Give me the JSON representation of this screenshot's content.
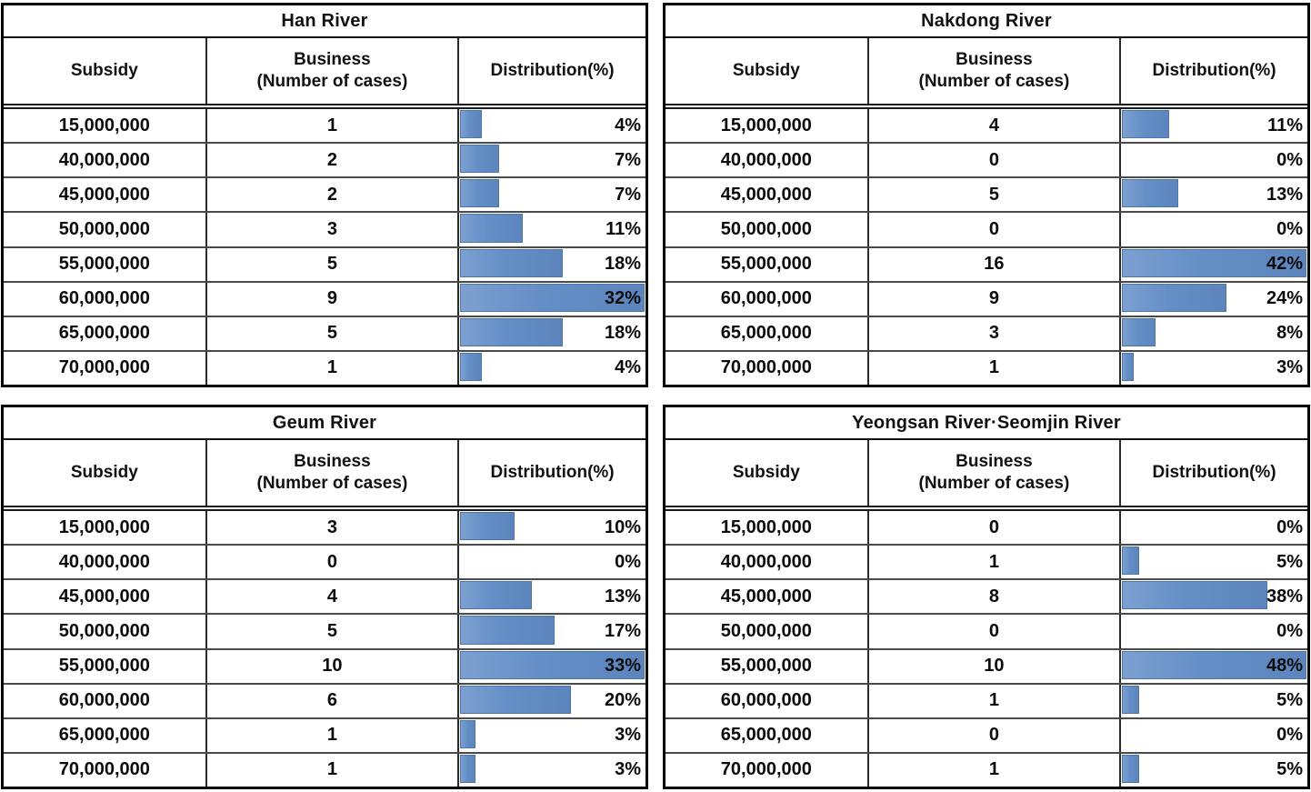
{
  "columns": {
    "subsidy": "Subsidy",
    "business_line1": "Business",
    "business_line2": "(Number of cases)",
    "distribution": "Distribution(%)"
  },
  "bar_color": "#638ec6",
  "chart_data": [
    {
      "type": "table",
      "title": "Han River",
      "columns": [
        "Subsidy",
        "Business (Number of cases)",
        "Distribution(%)"
      ],
      "subsidy": [
        "15,000,000",
        "40,000,000",
        "45,000,000",
        "50,000,000",
        "55,000,000",
        "60,000,000",
        "65,000,000",
        "70,000,000"
      ],
      "business_cases": [
        1,
        2,
        2,
        3,
        5,
        9,
        5,
        1
      ],
      "distribution_pct": [
        4,
        7,
        7,
        11,
        18,
        32,
        18,
        4
      ],
      "bar_scale": "bar width proportional to max percent in table"
    },
    {
      "type": "table",
      "title": "Nakdong River",
      "columns": [
        "Subsidy",
        "Business (Number of cases)",
        "Distribution(%)"
      ],
      "subsidy": [
        "15,000,000",
        "40,000,000",
        "45,000,000",
        "50,000,000",
        "55,000,000",
        "60,000,000",
        "65,000,000",
        "70,000,000"
      ],
      "business_cases": [
        4,
        0,
        5,
        0,
        16,
        9,
        3,
        1
      ],
      "distribution_pct": [
        11,
        0,
        13,
        0,
        42,
        24,
        8,
        3
      ],
      "bar_scale": "bar width proportional to max percent in table"
    },
    {
      "type": "table",
      "title": "Geum River",
      "columns": [
        "Subsidy",
        "Business (Number of cases)",
        "Distribution(%)"
      ],
      "subsidy": [
        "15,000,000",
        "40,000,000",
        "45,000,000",
        "50,000,000",
        "55,000,000",
        "60,000,000",
        "65,000,000",
        "70,000,000"
      ],
      "business_cases": [
        3,
        0,
        4,
        5,
        10,
        6,
        1,
        1
      ],
      "distribution_pct": [
        10,
        0,
        13,
        17,
        33,
        20,
        3,
        3
      ],
      "bar_scale": "bar width proportional to max percent in table"
    },
    {
      "type": "table",
      "title": "Yeongsan River·Seomjin River",
      "columns": [
        "Subsidy",
        "Business (Number of cases)",
        "Distribution(%)"
      ],
      "subsidy": [
        "15,000,000",
        "40,000,000",
        "45,000,000",
        "50,000,000",
        "55,000,000",
        "60,000,000",
        "65,000,000",
        "70,000,000"
      ],
      "business_cases": [
        0,
        1,
        8,
        0,
        10,
        1,
        0,
        1
      ],
      "distribution_pct": [
        0,
        5,
        38,
        0,
        48,
        5,
        0,
        5
      ],
      "bar_scale": "bar width proportional to max percent in table"
    }
  ]
}
